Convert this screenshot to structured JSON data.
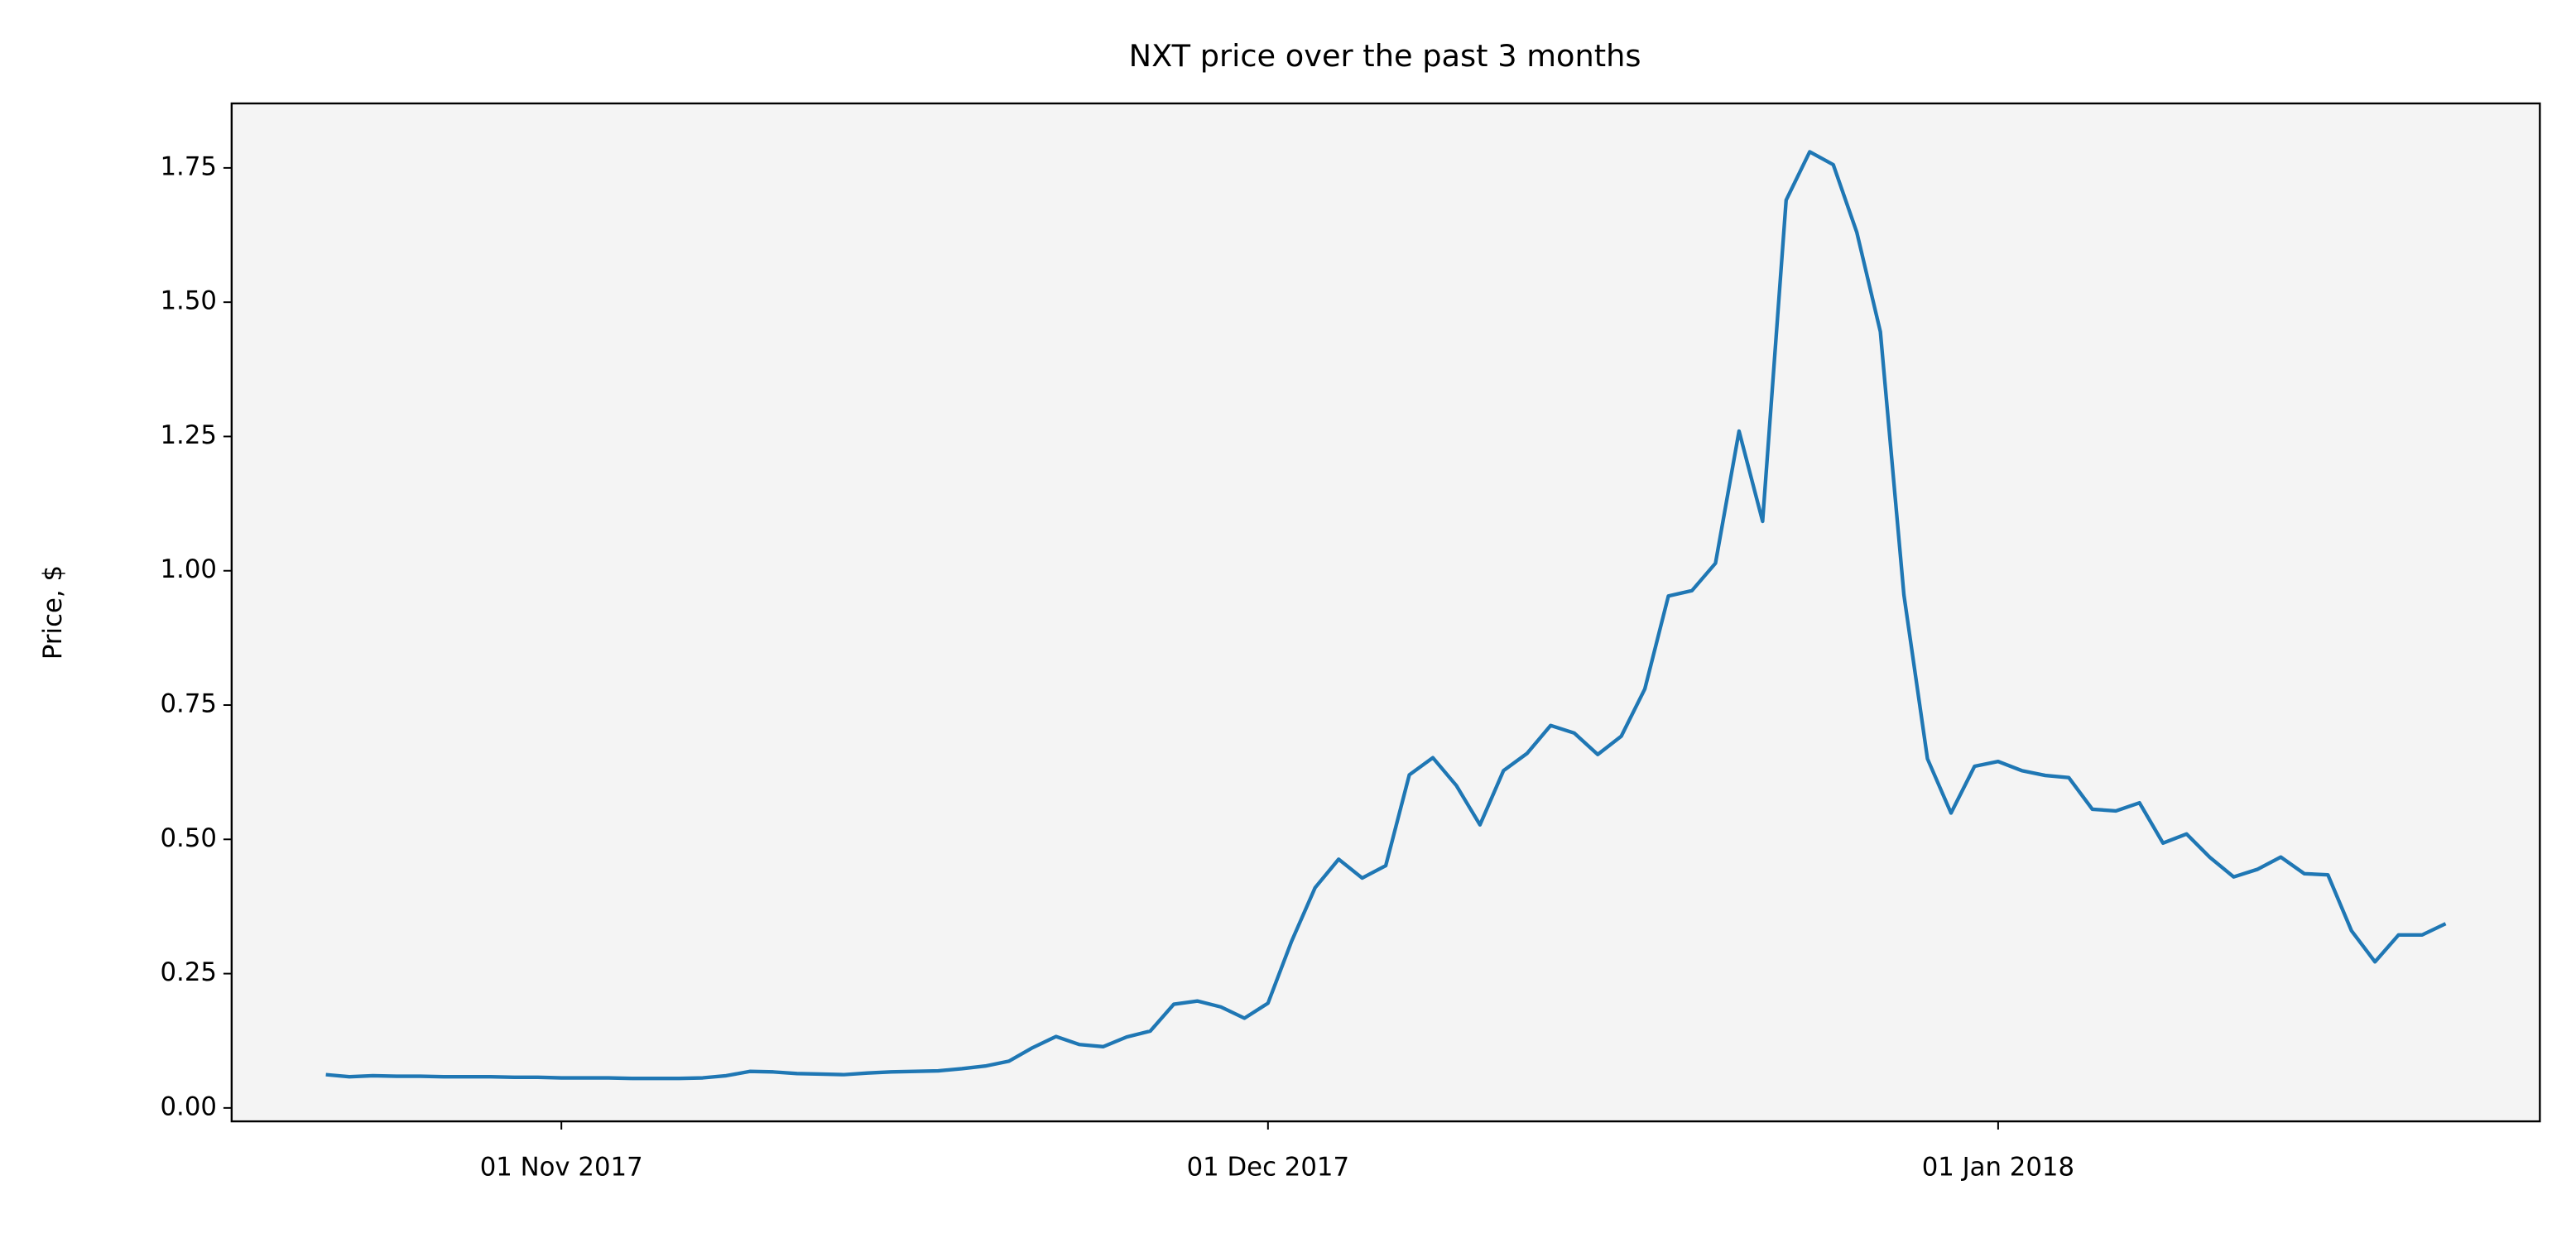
{
  "chart_data": {
    "type": "line",
    "title": "NXT price over the past 3 months",
    "ylabel": "Price, $",
    "color": "#1f77b4",
    "background": "#f4f4f4",
    "x": [
      "2017-10-22",
      "2017-10-23",
      "2017-10-24",
      "2017-10-25",
      "2017-10-26",
      "2017-10-27",
      "2017-10-28",
      "2017-10-29",
      "2017-10-30",
      "2017-10-31",
      "2017-11-01",
      "2017-11-02",
      "2017-11-03",
      "2017-11-04",
      "2017-11-05",
      "2017-11-06",
      "2017-11-07",
      "2017-11-08",
      "2017-11-09",
      "2017-11-10",
      "2017-11-11",
      "2017-11-12",
      "2017-11-13",
      "2017-11-14",
      "2017-11-15",
      "2017-11-16",
      "2017-11-17",
      "2017-11-18",
      "2017-11-19",
      "2017-11-20",
      "2017-11-21",
      "2017-11-22",
      "2017-11-23",
      "2017-11-24",
      "2017-11-25",
      "2017-11-26",
      "2017-11-27",
      "2017-11-28",
      "2017-11-29",
      "2017-11-30",
      "2017-12-01",
      "2017-12-02",
      "2017-12-03",
      "2017-12-04",
      "2017-12-05",
      "2017-12-06",
      "2017-12-07",
      "2017-12-08",
      "2017-12-09",
      "2017-12-10",
      "2017-12-11",
      "2017-12-12",
      "2017-12-13",
      "2017-12-14",
      "2017-12-15",
      "2017-12-16",
      "2017-12-17",
      "2017-12-18",
      "2017-12-19",
      "2017-12-20",
      "2017-12-21",
      "2017-12-22",
      "2017-12-23",
      "2017-12-24",
      "2017-12-25",
      "2017-12-26",
      "2017-12-27",
      "2017-12-28",
      "2017-12-29",
      "2017-12-30",
      "2017-12-31",
      "2018-01-01",
      "2018-01-02",
      "2018-01-03",
      "2018-01-04",
      "2018-01-05",
      "2018-01-06",
      "2018-01-07",
      "2018-01-08",
      "2018-01-09",
      "2018-01-10",
      "2018-01-11",
      "2018-01-12",
      "2018-01-13",
      "2018-01-14",
      "2018-01-15",
      "2018-01-16",
      "2018-01-17",
      "2018-01-18",
      "2018-01-19",
      "2018-01-20"
    ],
    "values": [
      0.062,
      0.058,
      0.06,
      0.059,
      0.059,
      0.058,
      0.058,
      0.058,
      0.057,
      0.057,
      0.056,
      0.056,
      0.056,
      0.055,
      0.055,
      0.055,
      0.056,
      0.06,
      0.068,
      0.067,
      0.064,
      0.063,
      0.062,
      0.065,
      0.067,
      0.068,
      0.069,
      0.073,
      0.078,
      0.087,
      0.112,
      0.133,
      0.118,
      0.114,
      0.132,
      0.143,
      0.193,
      0.199,
      0.188,
      0.167,
      0.195,
      0.31,
      0.41,
      0.463,
      0.428,
      0.451,
      0.62,
      0.652,
      0.6,
      0.527,
      0.628,
      0.66,
      0.712,
      0.698,
      0.658,
      0.692,
      0.78,
      0.953,
      0.963,
      1.014,
      1.26,
      1.092,
      1.69,
      1.78,
      1.756,
      1.63,
      1.445,
      0.955,
      0.65,
      0.549,
      0.636,
      0.645,
      0.628,
      0.619,
      0.615,
      0.556,
      0.553,
      0.568,
      0.493,
      0.51,
      0.466,
      0.43,
      0.444,
      0.467,
      0.436,
      0.434,
      0.33,
      0.272,
      0.322,
      0.322,
      0.343
    ],
    "xlim": [
      "2017-10-18",
      "2018-01-24"
    ],
    "xticks": [
      {
        "value": "2017-11-01",
        "label": "01 Nov 2017"
      },
      {
        "value": "2017-12-01",
        "label": "01 Dec 2017"
      },
      {
        "value": "2018-01-01",
        "label": "01 Jan 2018"
      }
    ],
    "ylim": [
      -0.025,
      1.87
    ],
    "yticks": [
      {
        "value": 0,
        "label": "0.00"
      },
      {
        "value": 0.25,
        "label": "0.25"
      },
      {
        "value": 0.5,
        "label": "0.50"
      },
      {
        "value": 0.75,
        "label": "0.75"
      },
      {
        "value": 1,
        "label": "1.00"
      },
      {
        "value": 1.25,
        "label": "1.25"
      },
      {
        "value": 1.5,
        "label": "1.50"
      },
      {
        "value": 1.75,
        "label": "1.75"
      }
    ]
  }
}
